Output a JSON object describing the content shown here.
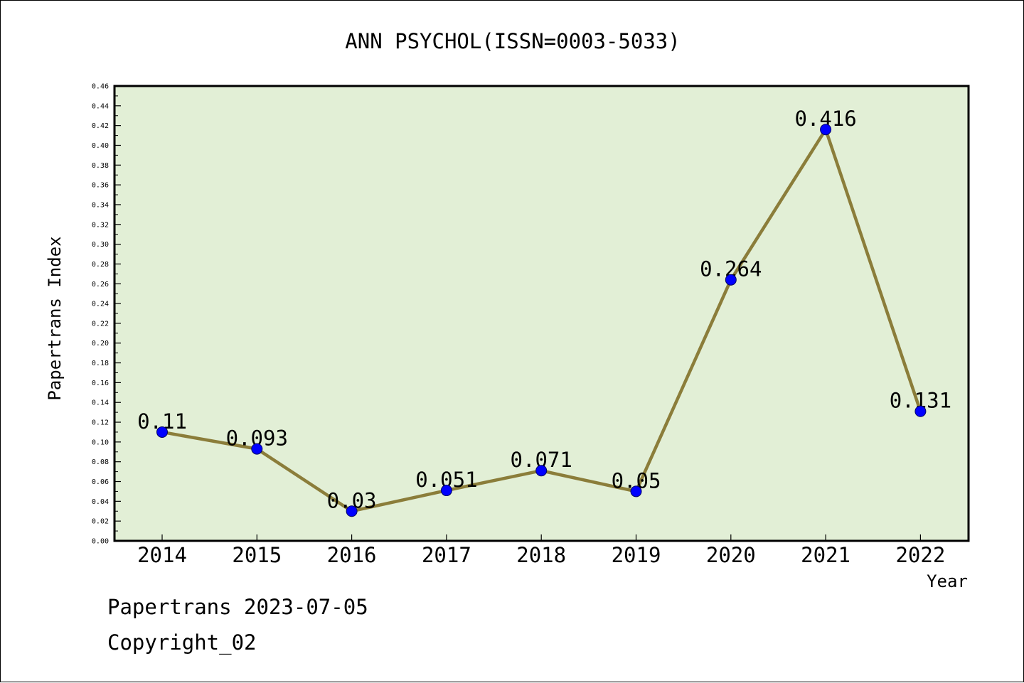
{
  "chart_data": {
    "type": "line",
    "title": "ANN PSYCHOL(ISSN=0003-5033)",
    "xlabel": "Year",
    "ylabel": "Papertrans Index",
    "categories": [
      "2014",
      "2015",
      "2016",
      "2017",
      "2018",
      "2019",
      "2020",
      "2021",
      "2022"
    ],
    "series": [
      {
        "values": [
          0.11,
          0.093,
          0.03,
          0.051,
          0.071,
          0.05,
          0.264,
          0.416,
          0.131
        ]
      }
    ],
    "data_labels": [
      "0.11",
      "0.093",
      "0.03",
      "0.051",
      "0.071",
      "0.05",
      "0.264",
      "0.416",
      "0.131"
    ],
    "ylim": [
      0,
      0.46
    ],
    "yticks": [
      "0.00",
      "0.02",
      "0.04",
      "0.06",
      "0.08",
      "0.10",
      "0.12",
      "0.14",
      "0.16",
      "0.18",
      "0.20",
      "0.22",
      "0.24",
      "0.26",
      "0.28",
      "0.30",
      "0.32",
      "0.34",
      "0.36",
      "0.38",
      "0.40",
      "0.42",
      "0.44",
      "0.46"
    ],
    "grid": false,
    "legend": "none",
    "colors": {
      "plot_background": "#e2efd6",
      "line": "#8b7d3a",
      "marker": "#0000ff",
      "axis": "#000000"
    }
  },
  "footer": {
    "line1": "Papertrans 2023-07-05",
    "line2": "Copyright_02"
  }
}
